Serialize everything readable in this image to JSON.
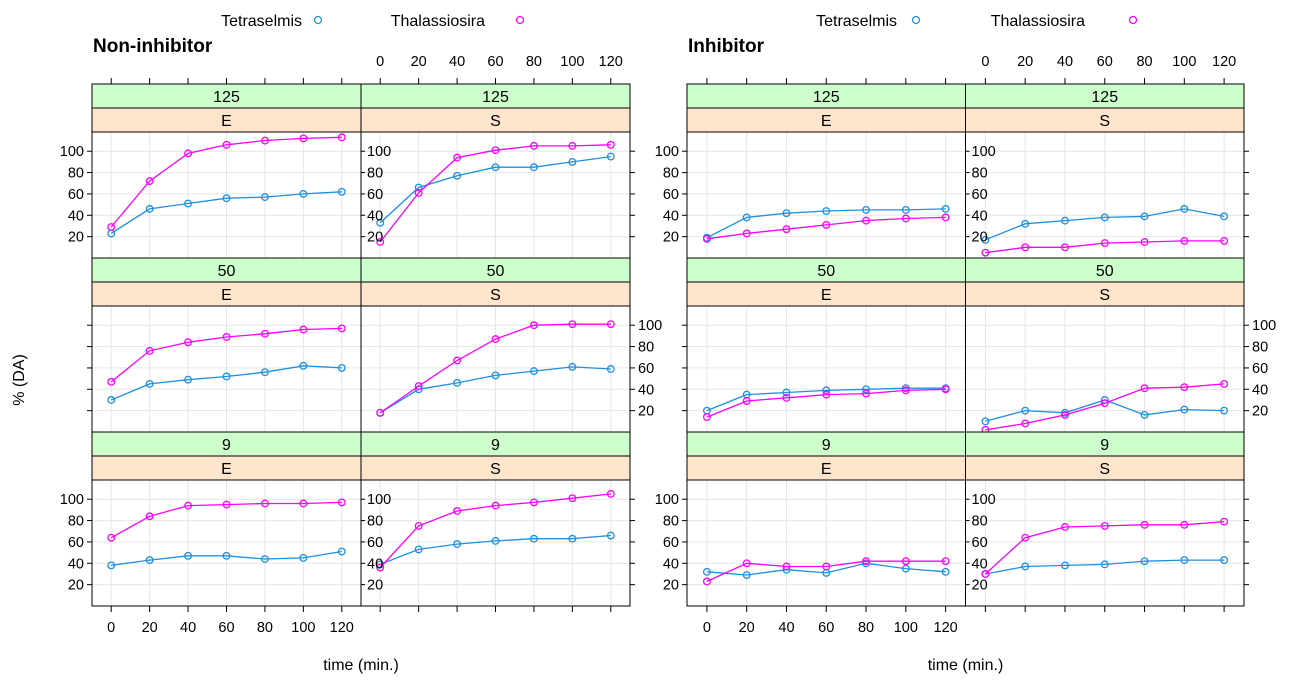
{
  "y_axis_label": "% (DA)",
  "x_axis_label": "time (min.)",
  "legend": {
    "series": [
      {
        "name": "Tetraselmis",
        "color": "#1e90e0",
        "marker": "open-circle"
      },
      {
        "name": "Thalassiosira",
        "color": "#ff00ff",
        "marker": "open-circle"
      }
    ],
    "placement": "top"
  },
  "strip_colors": {
    "level1": "#ccffcc",
    "level2": "#ffe5cc"
  },
  "chart_data": [
    {
      "type": "line",
      "title": "Non-inhibitor",
      "x": [
        0,
        20,
        40,
        60,
        80,
        100,
        120
      ],
      "xticks": [
        0,
        20,
        40,
        60,
        80,
        100,
        120
      ],
      "yticks": [
        20,
        40,
        60,
        80,
        100
      ],
      "xlim": [
        -10,
        130
      ],
      "ylim": [
        0,
        118
      ],
      "xlabel": "time (min.)",
      "ylabel": "% (DA)",
      "grid": true,
      "panels": [
        {
          "strip_top": "125",
          "strip_bottom": "E",
          "series": [
            {
              "name": "Tetraselmis",
              "values": [
                23,
                46,
                51,
                56,
                57,
                60,
                62
              ]
            },
            {
              "name": "Thalassiosira",
              "values": [
                29,
                72,
                98,
                106,
                110,
                112,
                113
              ]
            }
          ]
        },
        {
          "strip_top": "125",
          "strip_bottom": "S",
          "series": [
            {
              "name": "Tetraselmis",
              "values": [
                33,
                66,
                77,
                85,
                85,
                90,
                95
              ]
            },
            {
              "name": "Thalassiosira",
              "values": [
                15,
                61,
                94,
                101,
                105,
                105,
                106
              ]
            }
          ]
        },
        {
          "strip_top": "50",
          "strip_bottom": "E",
          "series": [
            {
              "name": "Tetraselmis",
              "values": [
                30,
                45,
                49,
                52,
                56,
                62,
                60
              ]
            },
            {
              "name": "Thalassiosira",
              "values": [
                47,
                76,
                84,
                89,
                92,
                96,
                97
              ]
            }
          ]
        },
        {
          "strip_top": "50",
          "strip_bottom": "S",
          "series": [
            {
              "name": "Tetraselmis",
              "values": [
                18,
                40,
                46,
                53,
                57,
                61,
                59
              ]
            },
            {
              "name": "Thalassiosira",
              "values": [
                18,
                43,
                67,
                87,
                100,
                101,
                101
              ]
            }
          ]
        },
        {
          "strip_top": "9",
          "strip_bottom": "E",
          "series": [
            {
              "name": "Tetraselmis",
              "values": [
                38,
                43,
                47,
                47,
                44,
                45,
                51
              ]
            },
            {
              "name": "Thalassiosira",
              "values": [
                64,
                84,
                94,
                95,
                96,
                96,
                97
              ]
            }
          ]
        },
        {
          "strip_top": "9",
          "strip_bottom": "S",
          "series": [
            {
              "name": "Tetraselmis",
              "values": [
                39,
                53,
                58,
                61,
                63,
                63,
                66
              ]
            },
            {
              "name": "Thalassiosira",
              "values": [
                36,
                75,
                89,
                94,
                97,
                101,
                105
              ]
            }
          ]
        }
      ]
    },
    {
      "type": "line",
      "title": "Inhibitor",
      "x": [
        0,
        20,
        40,
        60,
        80,
        100,
        120
      ],
      "xticks": [
        0,
        20,
        40,
        60,
        80,
        100,
        120
      ],
      "yticks": [
        20,
        40,
        60,
        80,
        100
      ],
      "xlim": [
        -10,
        130
      ],
      "ylim": [
        0,
        118
      ],
      "xlabel": "time (min.)",
      "ylabel": "% (DA)",
      "grid": true,
      "panels": [
        {
          "strip_top": "125",
          "strip_bottom": "E",
          "series": [
            {
              "name": "Tetraselmis",
              "values": [
                19,
                38,
                42,
                44,
                45,
                45,
                46
              ]
            },
            {
              "name": "Thalassiosira",
              "values": [
                18,
                23,
                27,
                31,
                35,
                37,
                38
              ]
            }
          ]
        },
        {
          "strip_top": "125",
          "strip_bottom": "S",
          "series": [
            {
              "name": "Tetraselmis",
              "values": [
                17,
                32,
                35,
                38,
                39,
                46,
                39
              ]
            },
            {
              "name": "Thalassiosira",
              "values": [
                5,
                10,
                10,
                14,
                15,
                16,
                16
              ]
            }
          ]
        },
        {
          "strip_top": "50",
          "strip_bottom": "E",
          "series": [
            {
              "name": "Tetraselmis",
              "values": [
                20,
                35,
                37,
                39,
                40,
                41,
                41
              ]
            },
            {
              "name": "Thalassiosira",
              "values": [
                14,
                29,
                32,
                35,
                36,
                39,
                40
              ]
            }
          ]
        },
        {
          "strip_top": "50",
          "strip_bottom": "S",
          "series": [
            {
              "name": "Tetraselmis",
              "values": [
                10,
                20,
                18,
                30,
                16,
                21,
                20
              ]
            },
            {
              "name": "Thalassiosira",
              "values": [
                2,
                8,
                16,
                27,
                41,
                42,
                45
              ]
            }
          ]
        },
        {
          "strip_top": "9",
          "strip_bottom": "E",
          "series": [
            {
              "name": "Tetraselmis",
              "values": [
                32,
                29,
                34,
                31,
                40,
                35,
                32
              ]
            },
            {
              "name": "Thalassiosira",
              "values": [
                23,
                40,
                37,
                37,
                42,
                42,
                42
              ]
            }
          ]
        },
        {
          "strip_top": "9",
          "strip_bottom": "S",
          "series": [
            {
              "name": "Tetraselmis",
              "values": [
                30,
                37,
                38,
                39,
                42,
                43,
                43
              ]
            },
            {
              "name": "Thalassiosira",
              "values": [
                30,
                64,
                74,
                75,
                76,
                76,
                79
              ]
            }
          ]
        }
      ]
    }
  ]
}
